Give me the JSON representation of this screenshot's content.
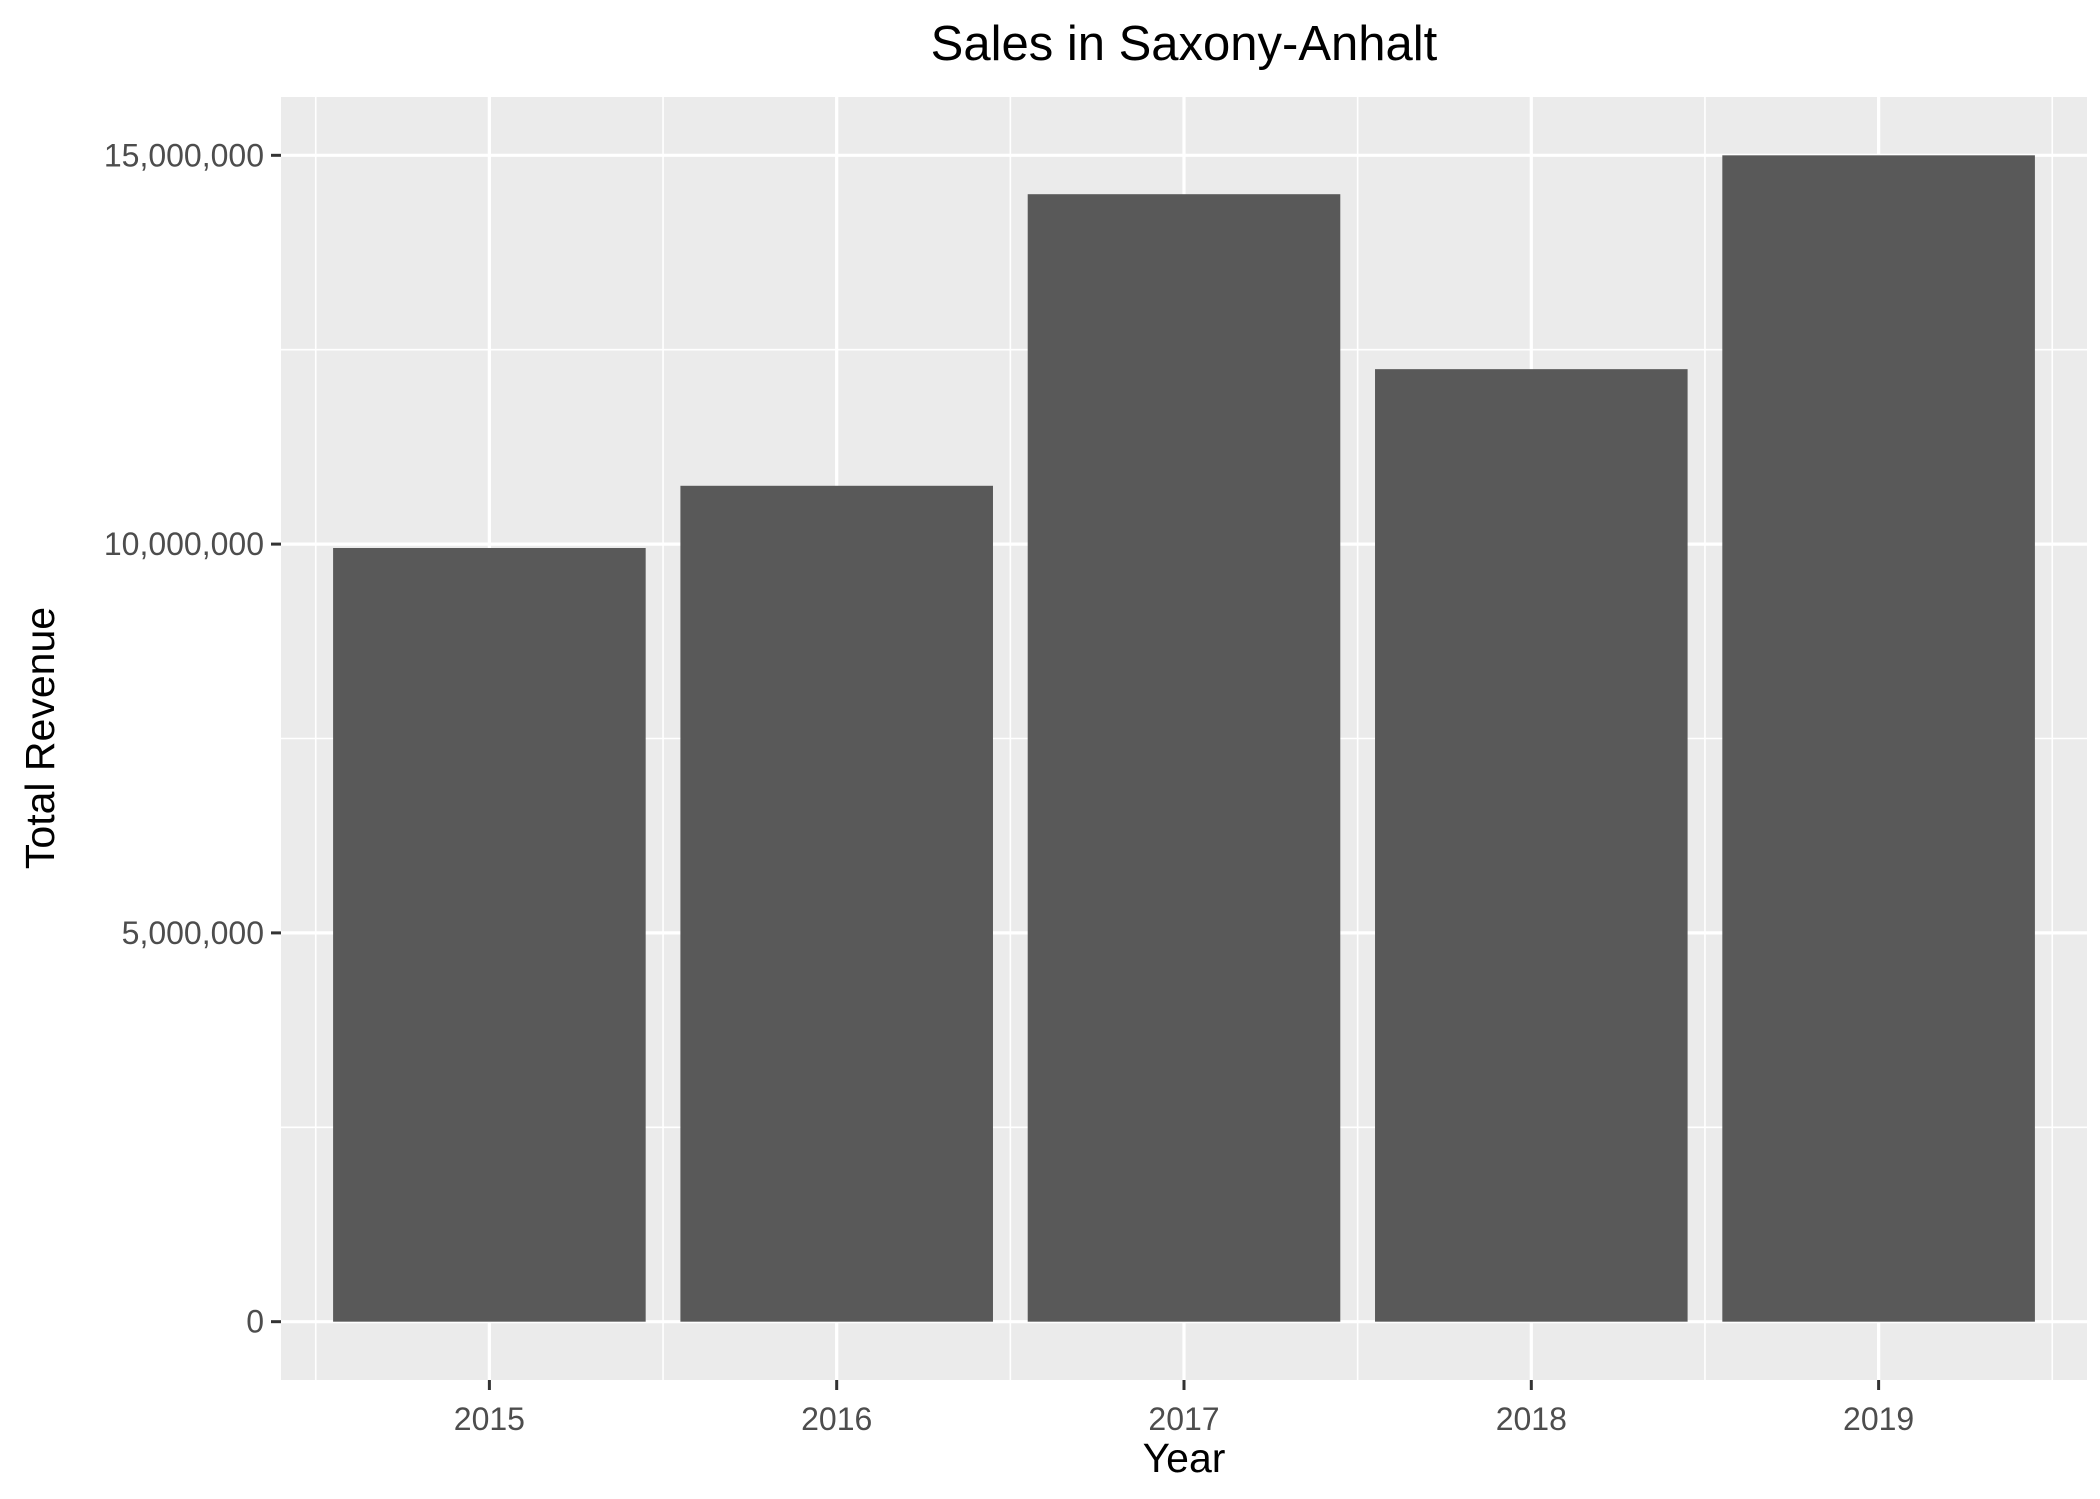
{
  "chart_data": {
    "type": "bar",
    "title": "Sales in Saxony-Anhalt",
    "xlabel": "Year",
    "ylabel": "Total Revenue",
    "categories": [
      "2015",
      "2016",
      "2017",
      "2018",
      "2019"
    ],
    "values": [
      9950000,
      10750000,
      14500000,
      12250000,
      15000000
    ],
    "ylim": [
      -750000,
      15750000
    ],
    "yticks": [
      0,
      5000000,
      10000000,
      15000000
    ],
    "ytick_labels": [
      "0",
      "5,000,000",
      "10,000,000",
      "15,000,000"
    ],
    "grid": true,
    "legend": "none",
    "colors": {
      "bar": "#595959",
      "panel": "#ebebeb",
      "grid": "#ffffff",
      "tick_text": "#4d4d4d",
      "tick_mark": "#333333"
    }
  }
}
